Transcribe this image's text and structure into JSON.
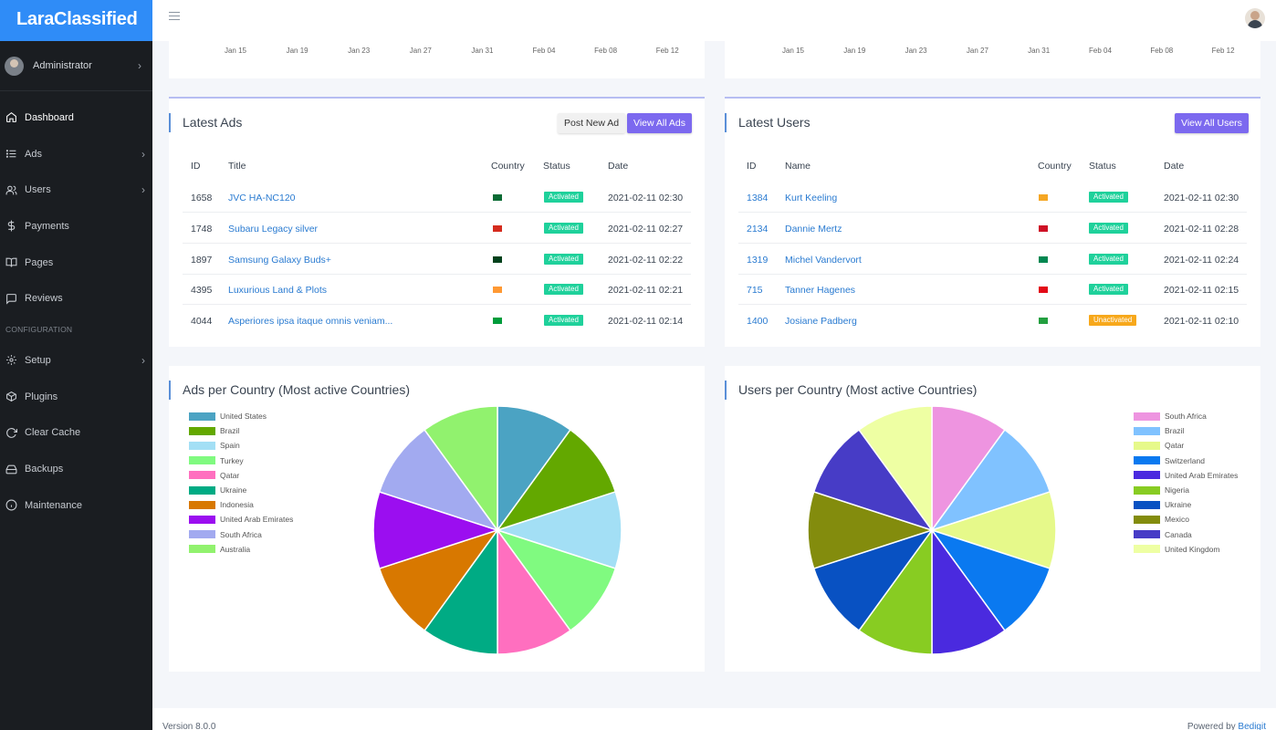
{
  "brand": "LaraClassified",
  "user": {
    "name": "Administrator"
  },
  "nav": {
    "items": [
      {
        "label": "Dashboard",
        "icon": "home-icon",
        "chevron": false,
        "active": true
      },
      {
        "label": "Ads",
        "icon": "list-icon",
        "chevron": true
      },
      {
        "label": "Users",
        "icon": "users-icon",
        "chevron": true
      },
      {
        "label": "Payments",
        "icon": "dollar-icon",
        "chevron": false
      },
      {
        "label": "Pages",
        "icon": "book-icon",
        "chevron": false
      },
      {
        "label": "Reviews",
        "icon": "message-icon",
        "chevron": false
      }
    ],
    "section": "CONFIGURATION",
    "config_items": [
      {
        "label": "Setup",
        "icon": "gear-icon",
        "chevron": true
      },
      {
        "label": "Plugins",
        "icon": "package-icon",
        "chevron": false
      },
      {
        "label": "Clear Cache",
        "icon": "refresh-icon",
        "chevron": false
      },
      {
        "label": "Backups",
        "icon": "hard-drive-icon",
        "chevron": false
      },
      {
        "label": "Maintenance",
        "icon": "info-icon",
        "chevron": false
      }
    ]
  },
  "axis_dates": [
    "Jan 15",
    "Jan 19",
    "Jan 23",
    "Jan 27",
    "Jan 31",
    "Feb 04",
    "Feb 08",
    "Feb 12"
  ],
  "latest_ads": {
    "title": "Latest Ads",
    "post_button": "Post New Ad",
    "view_button": "View All Ads",
    "headers": [
      "ID",
      "Title",
      "Country",
      "Status",
      "Date"
    ],
    "rows": [
      {
        "id": "1658",
        "title": "JVC HA-NC120",
        "flag_color": "#0a6b34",
        "status": "Activated",
        "date": "2021-02-11 02:30"
      },
      {
        "id": "1748",
        "title": "Subaru Legacy silver",
        "flag_color": "#d52b1e",
        "status": "Activated",
        "date": "2021-02-11 02:27"
      },
      {
        "id": "1897",
        "title": "Samsung Galaxy Buds+",
        "flag_color": "#01411c",
        "status": "Activated",
        "date": "2021-02-11 02:22"
      },
      {
        "id": "4395",
        "title": "Luxurious Land & Plots",
        "flag_color": "#ff9933",
        "status": "Activated",
        "date": "2021-02-11 02:21"
      },
      {
        "id": "4044",
        "title": "Asperiores ipsa itaque omnis veniam...",
        "flag_color": "#009c3b",
        "status": "Activated",
        "date": "2021-02-11 02:14"
      }
    ]
  },
  "latest_users": {
    "title": "Latest Users",
    "view_button": "View All Users",
    "headers": [
      "ID",
      "Name",
      "Country",
      "Status",
      "Date"
    ],
    "rows": [
      {
        "id": "1384",
        "name": "Kurt Keeling",
        "flag_color": "#f5a623",
        "status": "Activated",
        "date": "2021-02-11 02:30"
      },
      {
        "id": "2134",
        "name": "Dannie Mertz",
        "flag_color": "#ce1126",
        "status": "Activated",
        "date": "2021-02-11 02:28"
      },
      {
        "id": "1319",
        "name": "Michel Vandervort",
        "flag_color": "#008751",
        "status": "Activated",
        "date": "2021-02-11 02:24"
      },
      {
        "id": "715",
        "name": "Tanner Hagenes",
        "flag_color": "#e30a17",
        "status": "Activated",
        "date": "2021-02-11 02:15"
      },
      {
        "id": "1400",
        "name": "Josiane Padberg",
        "flag_color": "#239f40",
        "status": "Unactivated",
        "date": "2021-02-11 02:10"
      }
    ]
  },
  "colors": {
    "activated": "#1fd19b",
    "unactivated": "#f7a81b",
    "accent": "#7c69ef",
    "brand": "#2f8cf7"
  },
  "chart_data": [
    {
      "type": "pie",
      "title": "Ads per Country (Most active Countries)",
      "legend_position": "top-left",
      "labels": [
        "United States",
        "Brazil",
        "Spain",
        "Turkey",
        "Qatar",
        "Ukraine",
        "Indonesia",
        "United Arab Emirates",
        "South Africa",
        "Australia"
      ],
      "values": [
        10,
        10,
        10,
        10,
        10,
        10,
        10,
        10,
        10,
        10
      ],
      "colors": [
        "#4ba3c3",
        "#63a800",
        "#a3dff5",
        "#80fa80",
        "#ff6fbf",
        "#00ab84",
        "#d87800",
        "#9b0ef0",
        "#a2aaf0",
        "#91f26e"
      ]
    },
    {
      "type": "pie",
      "title": "Users per Country (Most active Countries)",
      "legend_position": "top-right",
      "labels": [
        "South Africa",
        "Brazil",
        "Qatar",
        "Switzerland",
        "United Arab Emirates",
        "Nigeria",
        "Ukraine",
        "Mexico",
        "Canada",
        "United Kingdom"
      ],
      "values": [
        10,
        10,
        10,
        10,
        10,
        10,
        10,
        10,
        10,
        10
      ],
      "colors": [
        "#ee94e0",
        "#80c2ff",
        "#e6f98a",
        "#0a79f0",
        "#4a2adf",
        "#88cc22",
        "#0851c2",
        "#838c0d",
        "#473cc6",
        "#eeffa3"
      ]
    }
  ],
  "footer": {
    "version": "Version 8.0.0",
    "powered_prefix": "Powered by ",
    "powered_link": "Bedigit"
  }
}
